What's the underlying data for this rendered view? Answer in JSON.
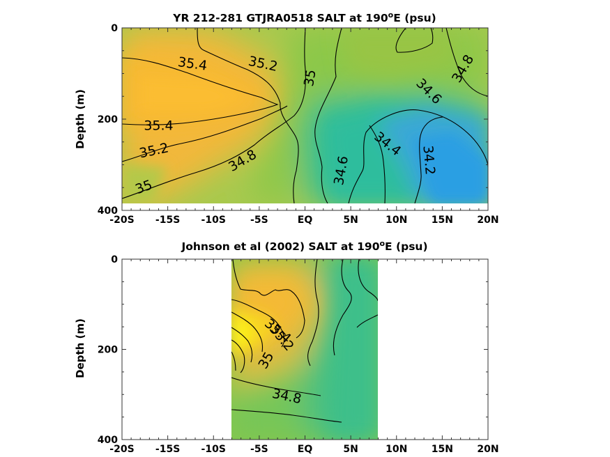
{
  "chart_data": [
    {
      "type": "heatmap",
      "title": "YR 212-281 GTJRA0518 SALT at 190",
      "title_sup": "o",
      "title_tail": "E (psu)",
      "ylabel": "Depth (m)",
      "xlim": [
        -20,
        20
      ],
      "ylim": [
        0,
        400
      ],
      "y_reversed": true,
      "x_ticks": [
        -20,
        -15,
        -10,
        -5,
        0,
        5,
        10,
        15,
        20
      ],
      "x_tick_labels": [
        "-20S",
        "-15S",
        "-10S",
        "-5S",
        "EQ",
        "5N",
        "10N",
        "15N",
        "20N"
      ],
      "y_ticks": [
        0,
        200,
        400
      ],
      "y_tick_labels": [
        "0",
        "200",
        "400"
      ],
      "data_depth_range": [
        0,
        385
      ],
      "contour_labels": [
        {
          "text": "35.4",
          "x": -12.3,
          "y": 80
        },
        {
          "text": "35.2",
          "x": -4.6,
          "y": 80
        },
        {
          "text": "35",
          "x": 0.6,
          "y": 110
        },
        {
          "text": "35.4",
          "x": -16.0,
          "y": 215
        },
        {
          "text": "35.2",
          "x": -16.5,
          "y": 270
        },
        {
          "text": "35",
          "x": -17.6,
          "y": 350
        },
        {
          "text": "34.8",
          "x": -6.8,
          "y": 292
        },
        {
          "text": "34.6",
          "x": 4.0,
          "y": 313
        },
        {
          "text": "34.4",
          "x": 9.0,
          "y": 255
        },
        {
          "text": "34.2",
          "x": 13.5,
          "y": 290
        },
        {
          "text": "34.6",
          "x": 13.5,
          "y": 140
        },
        {
          "text": "34.8",
          "x": 17.3,
          "y": 90
        }
      ]
    },
    {
      "type": "heatmap",
      "title": "Johnson et al (2002) SALT at 190",
      "title_sup": "o",
      "title_tail": "E (psu)",
      "ylabel": "Depth (m)",
      "xlim": [
        -20,
        20
      ],
      "ylim": [
        0,
        400
      ],
      "y_reversed": true,
      "x_ticks": [
        -20,
        -15,
        -10,
        -5,
        0,
        5,
        10,
        15,
        20
      ],
      "x_tick_labels": [
        "-20S",
        "-15S",
        "-10S",
        "-5S",
        "EQ",
        "5N",
        "10N",
        "15N",
        "20N"
      ],
      "y_ticks": [
        0,
        200,
        400
      ],
      "y_tick_labels": [
        "0",
        "200",
        "400"
      ],
      "data_lat_range": [
        -8,
        8
      ],
      "data_depth_range": [
        0,
        400
      ],
      "contour_labels": [
        {
          "text": "34.8",
          "x": -2.0,
          "y": 305
        },
        {
          "text": "35",
          "x": -4.2,
          "y": 225
        },
        {
          "text": "35.2",
          "x": -2.6,
          "y": 175
        },
        {
          "text": "35.4",
          "x": -3.0,
          "y": 160
        }
      ]
    }
  ]
}
